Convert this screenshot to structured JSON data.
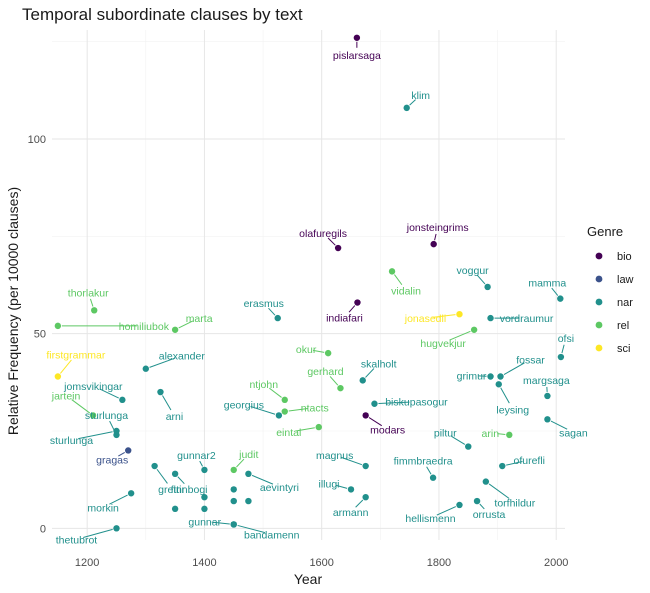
{
  "chart_data": {
    "type": "scatter",
    "title": "Temporal subordinate clauses by text",
    "xlabel": "Year",
    "ylabel": "Relative Frequency (per 10000 clauses)",
    "xlim": [
      1140,
      2015
    ],
    "ylim": [
      -3,
      128
    ],
    "x_ticks": [
      1200,
      1400,
      1600,
      1800,
      2000
    ],
    "y_ticks": [
      0,
      50,
      100
    ],
    "grid": true,
    "legend": {
      "title": "Genre",
      "position": "right",
      "entries": [
        {
          "name": "bio",
          "color": "#440154"
        },
        {
          "name": "law",
          "color": "#3b528b"
        },
        {
          "name": "nar",
          "color": "#21908c"
        },
        {
          "name": "rel",
          "color": "#5dc863"
        },
        {
          "name": "sci",
          "color": "#fde725"
        }
      ]
    },
    "points": [
      {
        "label": "pislarsaga",
        "x": 1660,
        "y": 126,
        "genre": "bio"
      },
      {
        "label": "klim",
        "x": 1745,
        "y": 108,
        "genre": "nar"
      },
      {
        "label": "olafuregils",
        "x": 1628,
        "y": 72,
        "genre": "bio"
      },
      {
        "label": "jonsteingrims",
        "x": 1791,
        "y": 73,
        "genre": "bio"
      },
      {
        "label": "vidalin",
        "x": 1720,
        "y": 66,
        "genre": "rel"
      },
      {
        "label": "voggur",
        "x": 1883,
        "y": 62,
        "genre": "nar"
      },
      {
        "label": "mamma",
        "x": 2007,
        "y": 59,
        "genre": "nar"
      },
      {
        "label": "thorlakur",
        "x": 1212,
        "y": 56,
        "genre": "rel"
      },
      {
        "label": "homiliubok",
        "x": 1150,
        "y": 52,
        "genre": "rel"
      },
      {
        "label": "marta",
        "x": 1350,
        "y": 51,
        "genre": "rel"
      },
      {
        "label": "erasmus",
        "x": 1525,
        "y": 54,
        "genre": "nar"
      },
      {
        "label": "indiafari",
        "x": 1661,
        "y": 58,
        "genre": "bio"
      },
      {
        "label": "jonasedli",
        "x": 1835,
        "y": 55,
        "genre": "sci"
      },
      {
        "label": "vordraumur",
        "x": 1888,
        "y": 54,
        "genre": "nar"
      },
      {
        "label": "hugvekjur",
        "x": 1860,
        "y": 51,
        "genre": "rel"
      },
      {
        "label": "firstgrammar",
        "x": 1150,
        "y": 39,
        "genre": "sci"
      },
      {
        "label": "alexander",
        "x": 1300,
        "y": 41,
        "genre": "nar"
      },
      {
        "label": "okur",
        "x": 1611,
        "y": 45,
        "genre": "rel"
      },
      {
        "label": "fossar",
        "x": 1905,
        "y": 39,
        "genre": "nar"
      },
      {
        "label": "ofsi",
        "x": 2008,
        "y": 44,
        "genre": "nar"
      },
      {
        "label": "jomsvikingar",
        "x": 1260,
        "y": 33,
        "genre": "nar"
      },
      {
        "label": "ntjohn",
        "x": 1537,
        "y": 33,
        "genre": "rel"
      },
      {
        "label": "gerhard",
        "x": 1632,
        "y": 36,
        "genre": "rel"
      },
      {
        "label": "skalholt",
        "x": 1670,
        "y": 38,
        "genre": "nar"
      },
      {
        "label": "grimur",
        "x": 1888,
        "y": 39,
        "genre": "nar"
      },
      {
        "label": "leysing",
        "x": 1902,
        "y": 37,
        "genre": "nar"
      },
      {
        "label": "margsaga",
        "x": 1985,
        "y": 34,
        "genre": "nar"
      },
      {
        "label": "jartein",
        "x": 1210,
        "y": 29,
        "genre": "rel"
      },
      {
        "label": "arni",
        "x": 1325,
        "y": 35,
        "genre": "nar"
      },
      {
        "label": "georgius",
        "x": 1527,
        "y": 29,
        "genre": "nar"
      },
      {
        "label": "ntacts",
        "x": 1537,
        "y": 30,
        "genre": "rel"
      },
      {
        "label": "biskupasogur",
        "x": 1690,
        "y": 32,
        "genre": "nar"
      },
      {
        "label": "sagan",
        "x": 1985,
        "y": 28,
        "genre": "nar"
      },
      {
        "label": "sturlunga",
        "x": 1250,
        "y": 24,
        "genre": "nar"
      },
      {
        "label": "eintal",
        "x": 1595,
        "y": 26,
        "genre": "rel"
      },
      {
        "label": "modars",
        "x": 1675,
        "y": 29,
        "genre": "bio"
      },
      {
        "label": "piltur",
        "x": 1850,
        "y": 21,
        "genre": "nar"
      },
      {
        "label": "arin",
        "x": 1920,
        "y": 24,
        "genre": "rel"
      },
      {
        "label": "sturlunga",
        "x": 1250,
        "y": 25,
        "genre": "nar"
      },
      {
        "label": "gragas",
        "x": 1270,
        "y": 20,
        "genre": "law"
      },
      {
        "label": "gunnar2",
        "x": 1400,
        "y": 15,
        "genre": "nar"
      },
      {
        "label": "judit",
        "x": 1450,
        "y": 15,
        "genre": "rel"
      },
      {
        "label": "magnus",
        "x": 1675,
        "y": 16,
        "genre": "nar"
      },
      {
        "label": "fimmbraedra",
        "x": 1790,
        "y": 13,
        "genre": "nar"
      },
      {
        "label": "ofurefli",
        "x": 1908,
        "y": 16,
        "genre": "nar"
      },
      {
        "label": "finnbogi",
        "x": 1350,
        "y": 14,
        "genre": "nar"
      },
      {
        "label": "grettir",
        "x": 1315,
        "y": 16,
        "genre": "nar"
      },
      {
        "label": "illugi",
        "x": 1650,
        "y": 10,
        "genre": "nar"
      },
      {
        "label": "torfhildur",
        "x": 1880,
        "y": 12,
        "genre": "nar"
      },
      {
        "label": "morkin",
        "x": 1275,
        "y": 9,
        "genre": "nar"
      },
      {
        "label": "aevintyri",
        "x": 1475,
        "y": 14,
        "genre": "nar"
      },
      {
        "label": "armann",
        "x": 1675,
        "y": 8,
        "genre": "nar"
      },
      {
        "label": "hellismenn",
        "x": 1835,
        "y": 6,
        "genre": "nar"
      },
      {
        "label": "orrusta",
        "x": 1865,
        "y": 7,
        "genre": "nar"
      },
      {
        "label": "thetubrot",
        "x": 1250,
        "y": 0,
        "genre": "nar"
      },
      {
        "label": "gunnar",
        "x": 1450,
        "y": 1,
        "genre": "nar"
      },
      {
        "label": "bandamenn",
        "x": 1450,
        "y": 1,
        "genre": "nar"
      },
      {
        "label": "",
        "x": 1350,
        "y": 5,
        "genre": "nar"
      },
      {
        "label": "",
        "x": 1400,
        "y": 5,
        "genre": "nar"
      },
      {
        "label": "",
        "x": 1400,
        "y": 8,
        "genre": "nar"
      },
      {
        "label": "",
        "x": 1450,
        "y": 7,
        "genre": "nar"
      },
      {
        "label": "",
        "x": 1450,
        "y": 10,
        "genre": "nar"
      },
      {
        "label": "",
        "x": 1475,
        "y": 7,
        "genre": "nar"
      }
    ]
  }
}
